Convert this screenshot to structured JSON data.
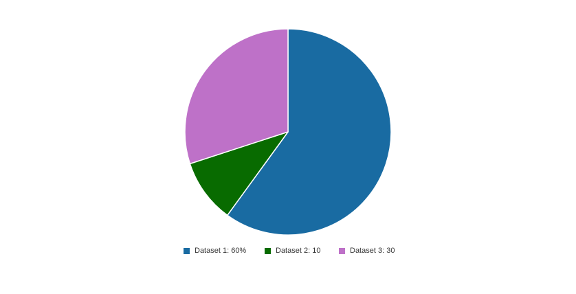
{
  "chart_data": {
    "type": "pie",
    "categories": [
      "Dataset 1",
      "Dataset 2",
      "Dataset 3"
    ],
    "values": [
      60,
      10,
      30
    ],
    "colors": [
      "#196ba2",
      "#086b00",
      "#be71c8"
    ],
    "start_angle_deg": 0,
    "direction": "clockwise",
    "legend_position": "bottom",
    "legend": [
      {
        "label": "Dataset 1: 60%",
        "color": "#196ba2"
      },
      {
        "label": "Dataset 2: 10",
        "color": "#086b00"
      },
      {
        "label": "Dataset 3: 30",
        "color": "#be71c8"
      }
    ]
  }
}
